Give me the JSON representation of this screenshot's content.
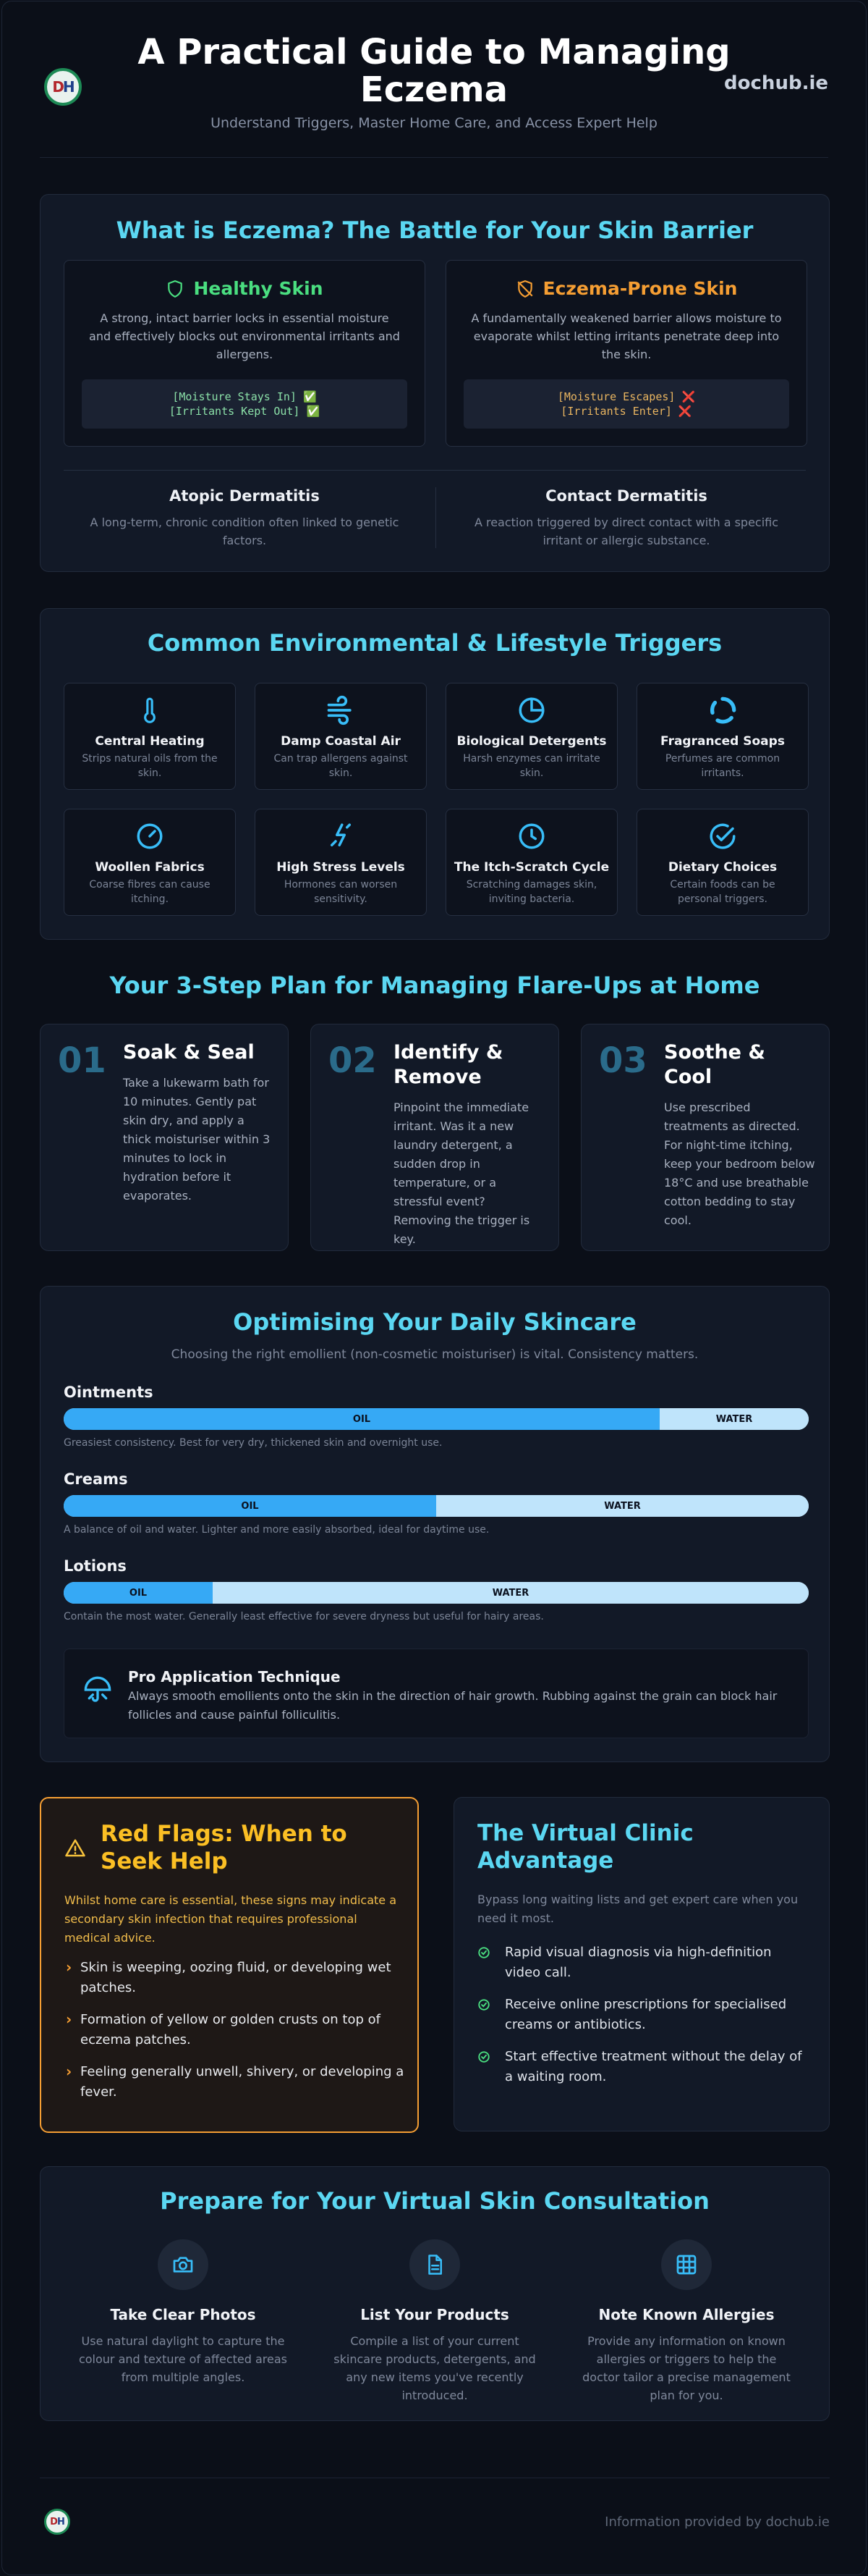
{
  "header": {
    "logo_letters": "DH",
    "title": "A Practical Guide to Managing Eczema",
    "subtitle": "Understand Triggers, Master Home Care, and Access Expert Help",
    "brand": "dochub.ie"
  },
  "barrier": {
    "title": "What is Eczema? The Battle for Your Skin Barrier",
    "healthy": {
      "title": "Healthy Skin",
      "icon": "shield-icon",
      "text": "A strong, intact barrier locks in essential moisture and effectively blocks out environmental irritants and allergens.",
      "line1": "[Moisture Stays In] ✅",
      "line2": "[Irritants Kept Out] ✅"
    },
    "prone": {
      "title": "Eczema-Prone Skin",
      "icon": "shield-off-icon",
      "text": "A fundamentally weakened barrier allows moisture to evaporate whilst letting irritants penetrate deep into the skin.",
      "line1": "[Moisture Escapes] ❌",
      "line2": "[Irritants Enter] ❌"
    },
    "atopic": {
      "title": "Atopic Dermatitis",
      "text": "A long-term, chronic condition often linked to genetic factors."
    },
    "contact": {
      "title": "Contact Dermatitis",
      "text": "A reaction triggered by direct contact with a specific irritant or allergic substance."
    }
  },
  "triggers": {
    "title": "Common Environmental & Lifestyle Triggers",
    "items": [
      {
        "title": "Central Heating",
        "text": "Strips natural oils from the skin.",
        "icon": "thermometer-icon"
      },
      {
        "title": "Damp Coastal Air",
        "text": "Can trap allergens against skin.",
        "icon": "wind-icon"
      },
      {
        "title": "Biological Detergents",
        "text": "Harsh enzymes can irritate skin.",
        "icon": "pie-chart-icon"
      },
      {
        "title": "Fragranced Soaps",
        "text": "Perfumes are common irritants.",
        "icon": "loader-icon"
      },
      {
        "title": "Woollen Fabrics",
        "text": "Coarse fibres can cause itching.",
        "icon": "gauge-icon"
      },
      {
        "title": "High Stress Levels",
        "text": "Hormones can worsen sensitivity.",
        "icon": "zap-icon"
      },
      {
        "title": "The Itch-Scratch Cycle",
        "text": "Scratching damages skin, inviting bacteria.",
        "icon": "clock-icon"
      },
      {
        "title": "Dietary Choices",
        "text": "Certain foods can be personal triggers.",
        "icon": "check-circle-icon"
      }
    ]
  },
  "plan": {
    "title": "Your 3-Step Plan for Managing Flare-Ups at Home",
    "steps": [
      {
        "num": "01",
        "title": "Soak & Seal",
        "text": "Take a lukewarm bath for 10 minutes. Gently pat skin dry, and apply a thick moisturiser within 3 minutes to lock in hydration before it evaporates."
      },
      {
        "num": "02",
        "title": "Identify & Remove",
        "text": "Pinpoint the immediate irritant. Was it a new laundry detergent, a sudden drop in temperature, or a stressful event? Removing the trigger is key."
      },
      {
        "num": "03",
        "title": "Soothe & Cool",
        "text": "Use prescribed treatments as directed. For night-time itching, keep your bedroom below 18°C and use breathable cotton bedding to stay cool."
      }
    ]
  },
  "skincare": {
    "title": "Optimising Your Daily Skincare",
    "subtitle": "Choosing the right emollient (non-cosmetic moisturiser) is vital. Consistency matters.",
    "oil_label": "OIL",
    "water_label": "WATER",
    "emollients": [
      {
        "name": "Ointments",
        "oil_pct": 80,
        "text": "Greasiest consistency. Best for very dry, thickened skin and overnight use."
      },
      {
        "name": "Creams",
        "oil_pct": 50,
        "text": "A balance of oil and water. Lighter and more easily absorbed, ideal for daytime use."
      },
      {
        "name": "Lotions",
        "oil_pct": 20,
        "text": "Contain the most water. Generally least effective for severe dryness but useful for hairy areas."
      }
    ],
    "tip": {
      "title": "Pro Application Technique",
      "text": "Always smooth emollients onto the skin in the direction of hair growth. Rubbing against the grain can block hair follicles and cause painful folliculitis."
    }
  },
  "red_flags": {
    "title": "Red Flags: When to Seek Help",
    "intro": "Whilst home care is essential, these signs may indicate a secondary skin infection that requires professional medical advice.",
    "items": [
      "Skin is weeping, oozing fluid, or developing wet patches.",
      "Formation of yellow or golden crusts on top of eczema patches.",
      "Feeling generally unwell, shivery, or developing a fever."
    ]
  },
  "virtual": {
    "title": "The Virtual Clinic Advantage",
    "intro": "Bypass long waiting lists and get expert care when you need it most.",
    "items": [
      "Rapid visual diagnosis via high-definition video call.",
      "Receive online prescriptions for specialised creams or antibiotics.",
      "Start effective treatment without the delay of a waiting room."
    ]
  },
  "prepare": {
    "title": "Prepare for Your Virtual Skin Consultation",
    "items": [
      {
        "title": "Take Clear Photos",
        "text": "Use natural daylight to capture the colour and texture of affected areas from multiple angles.",
        "icon": "camera-icon"
      },
      {
        "title": "List Your Products",
        "text": "Compile a list of your current skincare products, detergents, and any new items you've recently introduced.",
        "icon": "document-icon"
      },
      {
        "title": "Note Known Allergies",
        "text": "Provide any information on known allergies or triggers to help the doctor tailor a precise management plan for you.",
        "icon": "grid-icon"
      }
    ]
  },
  "footer": {
    "text": "Information provided by dochub.ie"
  }
}
